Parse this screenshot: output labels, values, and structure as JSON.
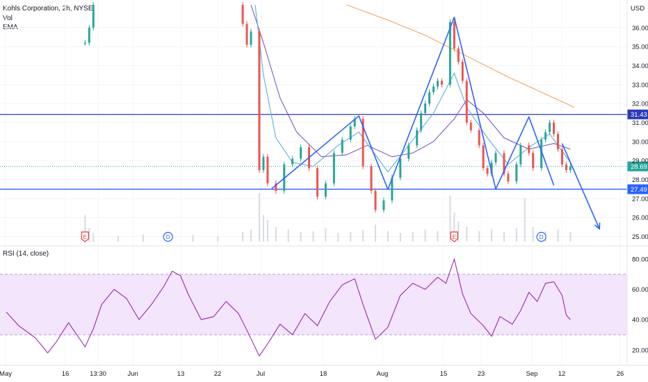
{
  "chart_data": {
    "type": "line",
    "title": "Kohls Corporation, 2h, NYSE",
    "legend_items": [
      "Vol",
      "EMA"
    ],
    "currency": "USD",
    "price_axis": {
      "ylim": [
        24.8,
        37.2
      ],
      "ticks": [
        "36.00",
        "35.00",
        "34.00",
        "33.00",
        "32.00",
        "31.00",
        "30.00",
        "29.00",
        "28.00",
        "27.00",
        "26.00",
        "25.00"
      ]
    },
    "time_axis": {
      "ticks": [
        "May",
        "16",
        "13:30",
        "Jun",
        "13",
        "22",
        "Jul",
        "18",
        "Aug",
        "15",
        "23",
        "Sep",
        "12",
        "26"
      ]
    },
    "horizontal_levels": [
      {
        "value": 31.43,
        "label": "31.43",
        "color": "#2a3ab8"
      },
      {
        "value": 27.49,
        "label": "27.49",
        "color": "#2962ff"
      }
    ],
    "last_price": {
      "value": 28.69,
      "label": "28.69",
      "color": "#26a69a"
    },
    "pattern_lines": {
      "color": "#2962ff",
      "points": [
        {
          "date": "Jul 04",
          "price": 27.52
        },
        {
          "date": "Jul 25",
          "price": 31.35
        },
        {
          "date": "Aug 01",
          "price": 27.48
        },
        {
          "date": "Aug 17",
          "price": 36.55
        },
        {
          "date": "Aug 27",
          "price": 27.5
        },
        {
          "date": "Sep 04",
          "price": 31.3
        },
        {
          "date": "Sep 10",
          "price": 27.7
        }
      ],
      "arrow": {
        "from": {
          "date": "Sep 12",
          "price": 29.9
        },
        "to": {
          "date": "Sep 21",
          "price": 25.4
        }
      }
    },
    "ema_long": {
      "color": "#f7a35c",
      "points": [
        {
          "date": "Jul 22",
          "price": 37.2
        },
        {
          "date": "Aug 01",
          "price": 36.4
        },
        {
          "date": "Aug 10",
          "price": 35.6
        },
        {
          "date": "Aug 20",
          "price": 34.5
        },
        {
          "date": "Aug 30",
          "price": 33.4
        },
        {
          "date": "Sep 08",
          "price": 32.5
        },
        {
          "date": "Sep 15",
          "price": 31.8
        }
      ]
    },
    "ema_mid": {
      "color": "#7e57c2",
      "points": [
        {
          "date": "Jun 29",
          "price": 37.2
        },
        {
          "date": "Jul 02",
          "price": 35.2
        },
        {
          "date": "Jul 06",
          "price": 32.3
        },
        {
          "date": "Jul 10",
          "price": 30.5
        },
        {
          "date": "Jul 16",
          "price": 29.2
        },
        {
          "date": "Jul 22",
          "price": 29.3
        },
        {
          "date": "Jul 27",
          "price": 29.8
        },
        {
          "date": "Aug 02",
          "price": 29.2
        },
        {
          "date": "Aug 07",
          "price": 29.4
        },
        {
          "date": "Aug 12",
          "price": 30.0
        },
        {
          "date": "Aug 17",
          "price": 31.2
        },
        {
          "date": "Aug 20",
          "price": 32.2
        },
        {
          "date": "Aug 24",
          "price": 31.5
        },
        {
          "date": "Aug 29",
          "price": 30.2
        },
        {
          "date": "Sep 04",
          "price": 29.6
        },
        {
          "date": "Sep 10",
          "price": 29.9
        },
        {
          "date": "Sep 14",
          "price": 29.6
        }
      ]
    },
    "ema_short": {
      "color": "#5ab0e0",
      "points": [
        {
          "date": "Jun 30",
          "price": 37.2
        },
        {
          "date": "Jul 02",
          "price": 33.5
        },
        {
          "date": "Jul 05",
          "price": 30.2
        },
        {
          "date": "Jul 09",
          "price": 28.9
        },
        {
          "date": "Jul 14",
          "price": 28.7
        },
        {
          "date": "Jul 20",
          "price": 29.8
        },
        {
          "date": "Jul 25",
          "price": 30.5
        },
        {
          "date": "Aug 01",
          "price": 28.4
        },
        {
          "date": "Aug 06",
          "price": 29.8
        },
        {
          "date": "Aug 12",
          "price": 31.5
        },
        {
          "date": "Aug 17",
          "price": 33.6
        },
        {
          "date": "Aug 20",
          "price": 31.8
        },
        {
          "date": "Aug 25",
          "price": 30.2
        },
        {
          "date": "Aug 30",
          "price": 28.8
        },
        {
          "date": "Sep 04",
          "price": 29.7
        },
        {
          "date": "Sep 09",
          "price": 30.4
        },
        {
          "date": "Sep 14",
          "price": 28.9
        }
      ]
    },
    "price_path": [
      {
        "date": "May 20",
        "price": 35.2
      },
      {
        "date": "May 21",
        "price": 36.0
      },
      {
        "date": "May 22",
        "price": 37.2
      },
      {
        "date": "Jun 26",
        "price": 37.2
      },
      {
        "date": "Jun 27",
        "price": 36.2
      },
      {
        "date": "Jun 28",
        "price": 35.1
      },
      {
        "date": "Jun 29",
        "price": 35.8
      },
      {
        "date": "Jul 01",
        "price": 28.5
      },
      {
        "date": "Jul 02",
        "price": 29.2
      },
      {
        "date": "Jul 03",
        "price": 27.8
      },
      {
        "date": "Jul 05",
        "price": 27.4
      },
      {
        "date": "Jul 07",
        "price": 28.8
      },
      {
        "date": "Jul 09",
        "price": 29.1
      },
      {
        "date": "Jul 11",
        "price": 29.7
      },
      {
        "date": "Jul 13",
        "price": 28.6
      },
      {
        "date": "Jul 15",
        "price": 27.1
      },
      {
        "date": "Jul 17",
        "price": 27.8
      },
      {
        "date": "Jul 19",
        "price": 29.4
      },
      {
        "date": "Jul 21",
        "price": 30.1
      },
      {
        "date": "Jul 23",
        "price": 30.8
      },
      {
        "date": "Jul 24",
        "price": 31.2
      },
      {
        "date": "Jul 26",
        "price": 28.7
      },
      {
        "date": "Jul 28",
        "price": 27.4
      },
      {
        "date": "Jul 29",
        "price": 26.4
      },
      {
        "date": "Jul 31",
        "price": 26.9
      },
      {
        "date": "Aug 02",
        "price": 28.1
      },
      {
        "date": "Aug 04",
        "price": 29.1
      },
      {
        "date": "Aug 06",
        "price": 29.8
      },
      {
        "date": "Aug 08",
        "price": 30.6
      },
      {
        "date": "Aug 09",
        "price": 31.5
      },
      {
        "date": "Aug 10",
        "price": 32.0
      },
      {
        "date": "Aug 11",
        "price": 32.6
      },
      {
        "date": "Aug 12",
        "price": 32.9
      },
      {
        "date": "Aug 13",
        "price": 33.2
      },
      {
        "date": "Aug 14",
        "price": 33.0
      },
      {
        "date": "Aug 16",
        "price": 36.3
      },
      {
        "date": "Aug 17",
        "price": 34.9
      },
      {
        "date": "Aug 18",
        "price": 34.2
      },
      {
        "date": "Aug 19",
        "price": 33.2
      },
      {
        "date": "Aug 20",
        "price": 31.0
      },
      {
        "date": "Aug 21",
        "price": 30.6
      },
      {
        "date": "Aug 23",
        "price": 29.8
      },
      {
        "date": "Aug 24",
        "price": 28.6
      },
      {
        "date": "Aug 25",
        "price": 28.3
      },
      {
        "date": "Aug 26",
        "price": 28.9
      },
      {
        "date": "Aug 27",
        "price": 29.4
      },
      {
        "date": "Aug 29",
        "price": 28.3
      },
      {
        "date": "Aug 30",
        "price": 27.9
      },
      {
        "date": "Sep 01",
        "price": 28.8
      },
      {
        "date": "Sep 02",
        "price": 29.8
      },
      {
        "date": "Sep 04",
        "price": 29.4
      },
      {
        "date": "Sep 05",
        "price": 28.6
      },
      {
        "date": "Sep 07",
        "price": 30.1
      },
      {
        "date": "Sep 08",
        "price": 30.5
      },
      {
        "date": "Sep 09",
        "price": 31.0
      },
      {
        "date": "Sep 10",
        "price": 30.4
      },
      {
        "date": "Sep 11",
        "price": 29.6
      },
      {
        "date": "Sep 12",
        "price": 28.8
      },
      {
        "date": "Sep 13",
        "price": 28.5
      },
      {
        "date": "Sep 14",
        "price": 28.69
      }
    ],
    "volume": [
      {
        "date": "May 20",
        "value": 0.55
      },
      {
        "date": "May 21",
        "value": 0.28
      },
      {
        "date": "May 22",
        "value": 0.18
      },
      {
        "date": "May 28",
        "value": 0.12
      },
      {
        "date": "Jun 03",
        "value": 0.15
      },
      {
        "date": "Jun 09",
        "value": 0.1
      },
      {
        "date": "Jun 15",
        "value": 0.14
      },
      {
        "date": "Jun 21",
        "value": 0.11
      },
      {
        "date": "Jun 27",
        "value": 0.2
      },
      {
        "date": "Jun 29",
        "value": 0.25
      },
      {
        "date": "Jul 01",
        "value": 1.0
      },
      {
        "date": "Jul 02",
        "value": 0.55
      },
      {
        "date": "Jul 03",
        "value": 0.45
      },
      {
        "date": "Jul 05",
        "value": 0.3
      },
      {
        "date": "Jul 08",
        "value": 0.25
      },
      {
        "date": "Jul 11",
        "value": 0.2
      },
      {
        "date": "Jul 14",
        "value": 0.22
      },
      {
        "date": "Jul 17",
        "value": 0.28
      },
      {
        "date": "Jul 20",
        "value": 0.18
      },
      {
        "date": "Jul 23",
        "value": 0.2
      },
      {
        "date": "Jul 26",
        "value": 0.24
      },
      {
        "date": "Jul 29",
        "value": 0.35
      },
      {
        "date": "Aug 01",
        "value": 0.22
      },
      {
        "date": "Aug 04",
        "value": 0.18
      },
      {
        "date": "Aug 07",
        "value": 0.2
      },
      {
        "date": "Aug 10",
        "value": 0.25
      },
      {
        "date": "Aug 13",
        "value": 0.22
      },
      {
        "date": "Aug 16",
        "value": 0.95
      },
      {
        "date": "Aug 17",
        "value": 0.6
      },
      {
        "date": "Aug 18",
        "value": 0.42
      },
      {
        "date": "Aug 20",
        "value": 0.3
      },
      {
        "date": "Aug 23",
        "value": 0.22
      },
      {
        "date": "Aug 26",
        "value": 0.25
      },
      {
        "date": "Aug 29",
        "value": 0.2
      },
      {
        "date": "Sep 01",
        "value": 0.28
      },
      {
        "date": "Sep 03",
        "value": 0.9
      },
      {
        "date": "Sep 05",
        "value": 0.3
      },
      {
        "date": "Sep 08",
        "value": 0.22
      },
      {
        "date": "Sep 11",
        "value": 0.25
      },
      {
        "date": "Sep 14",
        "value": 0.2
      }
    ],
    "event_markers": [
      {
        "date": "May 20",
        "text": "E",
        "color": "#e53935"
      },
      {
        "date": "Jun 09",
        "text": "D",
        "color": "#2962ff"
      },
      {
        "date": "Aug 17",
        "text": "E",
        "color": "#e53935"
      },
      {
        "date": "Sep 07",
        "text": "D",
        "color": "#2962ff"
      }
    ],
    "rsi": {
      "label": "RSI (14, close)",
      "color": "#9c27b0",
      "band": [
        30,
        70
      ],
      "band_color": "#f3e5fb",
      "ylim": [
        13,
        86
      ],
      "ticks": [
        "80.00",
        "60.00",
        "40.00",
        "20.00"
      ],
      "values": [
        {
          "date": "May 01",
          "value": 45
        },
        {
          "date": "May 04",
          "value": 36
        },
        {
          "date": "May 08",
          "value": 28
        },
        {
          "date": "May 11",
          "value": 18
        },
        {
          "date": "May 13",
          "value": 25
        },
        {
          "date": "May 16",
          "value": 38
        },
        {
          "date": "May 18",
          "value": 30
        },
        {
          "date": "May 20",
          "value": 22
        },
        {
          "date": "May 22",
          "value": 34
        },
        {
          "date": "May 24",
          "value": 50
        },
        {
          "date": "May 27",
          "value": 60
        },
        {
          "date": "May 30",
          "value": 54
        },
        {
          "date": "Jun 02",
          "value": 40
        },
        {
          "date": "Jun 05",
          "value": 50
        },
        {
          "date": "Jun 08",
          "value": 62
        },
        {
          "date": "Jun 10",
          "value": 72
        },
        {
          "date": "Jun 12",
          "value": 69
        },
        {
          "date": "Jun 14",
          "value": 56
        },
        {
          "date": "Jun 17",
          "value": 40
        },
        {
          "date": "Jun 20",
          "value": 42
        },
        {
          "date": "Jun 23",
          "value": 52
        },
        {
          "date": "Jun 26",
          "value": 44
        },
        {
          "date": "Jun 28",
          "value": 33
        },
        {
          "date": "Jul 01",
          "value": 16
        },
        {
          "date": "Jul 03",
          "value": 24
        },
        {
          "date": "Jul 06",
          "value": 37
        },
        {
          "date": "Jul 09",
          "value": 30
        },
        {
          "date": "Jul 12",
          "value": 44
        },
        {
          "date": "Jul 15",
          "value": 36
        },
        {
          "date": "Jul 18",
          "value": 52
        },
        {
          "date": "Jul 21",
          "value": 63
        },
        {
          "date": "Jul 24",
          "value": 67
        },
        {
          "date": "Jul 26",
          "value": 50
        },
        {
          "date": "Jul 29",
          "value": 27
        },
        {
          "date": "Aug 01",
          "value": 35
        },
        {
          "date": "Aug 04",
          "value": 56
        },
        {
          "date": "Aug 07",
          "value": 64
        },
        {
          "date": "Aug 10",
          "value": 60
        },
        {
          "date": "Aug 13",
          "value": 68
        },
        {
          "date": "Aug 15",
          "value": 64
        },
        {
          "date": "Aug 17",
          "value": 80
        },
        {
          "date": "Aug 19",
          "value": 57
        },
        {
          "date": "Aug 21",
          "value": 44
        },
        {
          "date": "Aug 24",
          "value": 36
        },
        {
          "date": "Aug 26",
          "value": 29
        },
        {
          "date": "Aug 28",
          "value": 42
        },
        {
          "date": "Aug 31",
          "value": 37
        },
        {
          "date": "Sep 02",
          "value": 46
        },
        {
          "date": "Sep 04",
          "value": 58
        },
        {
          "date": "Sep 06",
          "value": 52
        },
        {
          "date": "Sep 08",
          "value": 64
        },
        {
          "date": "Sep 10",
          "value": 65
        },
        {
          "date": "Sep 12",
          "value": 56
        },
        {
          "date": "Sep 13",
          "value": 43
        },
        {
          "date": "Sep 14",
          "value": 40
        }
      ]
    }
  }
}
